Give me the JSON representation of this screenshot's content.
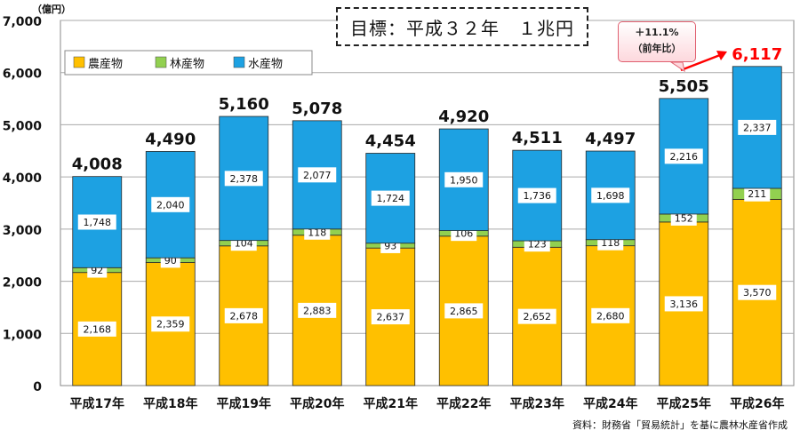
{
  "goal_label": "目標：平成３２年　１兆円",
  "callout": {
    "line1": "＋11.1%",
    "line2": "（前年比）"
  },
  "source_note": "資料：財務省「貿易統計」を基に農林水産省作成",
  "colors": {
    "agri": "#FFC000",
    "forest": "#92D050",
    "fish": "#1DA1E2",
    "highlight": "#FF0000"
  },
  "chart_data": {
    "type": "bar",
    "stacked": true,
    "categories": [
      "平成17年",
      "平成18年",
      "平成19年",
      "平成20年",
      "平成21年",
      "平成22年",
      "平成23年",
      "平成24年",
      "平成25年",
      "平成26年"
    ],
    "series": [
      {
        "name": "農産物",
        "color": "#FFC000",
        "values": [
          2168,
          2359,
          2678,
          2883,
          2637,
          2865,
          2652,
          2680,
          3136,
          3570
        ],
        "labels": [
          "2,168",
          "2,359",
          "2,678",
          "2,883",
          "2,637",
          "2,865",
          "2,652",
          "2,680",
          "3,136",
          "3,570"
        ]
      },
      {
        "name": "林産物",
        "color": "#92D050",
        "values": [
          92,
          90,
          104,
          118,
          93,
          106,
          123,
          118,
          152,
          211
        ],
        "labels": [
          "92",
          "90",
          "104",
          "118",
          "93",
          "106",
          "123",
          "118",
          "152",
          "211"
        ]
      },
      {
        "name": "水産物",
        "color": "#1DA1E2",
        "values": [
          1748,
          2040,
          2378,
          2077,
          1724,
          1950,
          1736,
          1698,
          2216,
          2337
        ],
        "labels": [
          "1,748",
          "2,040",
          "2,378",
          "2,077",
          "1,724",
          "1,950",
          "1,736",
          "1,698",
          "2,216",
          "2,337"
        ]
      }
    ],
    "totals": [
      "4,008",
      "4,490",
      "5,160",
      "5,078",
      "4,454",
      "4,920",
      "4,511",
      "4,497",
      "5,505",
      "6,117"
    ],
    "ylabel": "（億円）",
    "ylim": [
      0,
      7000
    ],
    "yticks": [
      "0",
      "1,000",
      "2,000",
      "3,000",
      "4,000",
      "5,000",
      "6,000",
      "7,000"
    ],
    "grid": true,
    "legend": "top-left"
  }
}
